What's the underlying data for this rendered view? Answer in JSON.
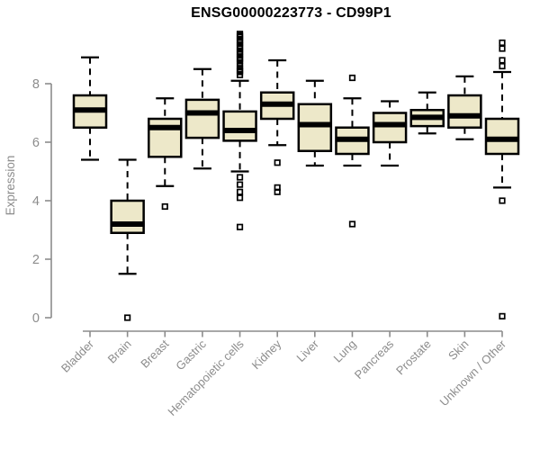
{
  "colors": {
    "background": "#FFFFFF",
    "title": "#000000",
    "axis": "#8C8C8C",
    "box_fill": "#EDE8C9",
    "box_stroke": "#000000"
  },
  "chart_data": {
    "type": "boxplot",
    "title": "ENSG00000223773 - CD99P1",
    "xlabel": "",
    "ylabel": "Expression",
    "yticks": [
      0,
      2,
      4,
      6,
      8
    ],
    "ylim": [
      0,
      9.9
    ],
    "grid": false,
    "legend": false,
    "categories": [
      "Bladder",
      "Brain",
      "Breast",
      "Gastric",
      "Hematopoietic cells",
      "Kidney",
      "Liver",
      "Lung",
      "Pancreas",
      "Prostate",
      "Skin",
      "Unknown / Other"
    ],
    "series": [
      {
        "category": "Bladder",
        "low": 5.4,
        "q1": 6.5,
        "median": 7.1,
        "q3": 7.6,
        "high": 8.9,
        "outliers": []
      },
      {
        "category": "Brain",
        "low": 1.5,
        "q1": 2.9,
        "median": 3.2,
        "q3": 4.0,
        "high": 5.4,
        "outliers": [
          0
        ]
      },
      {
        "category": "Breast",
        "low": 4.5,
        "q1": 5.5,
        "median": 6.5,
        "q3": 6.8,
        "high": 7.5,
        "outliers": [
          3.8
        ]
      },
      {
        "category": "Gastric",
        "low": 5.1,
        "q1": 6.15,
        "median": 7.0,
        "q3": 7.45,
        "high": 8.5,
        "outliers": []
      },
      {
        "category": "Hematopoietic cells",
        "low": 5.0,
        "q1": 6.05,
        "median": 6.4,
        "q3": 7.05,
        "high": 8.1,
        "outliers": [
          9.7,
          9.65,
          9.6,
          9.5,
          9.45,
          9.4,
          9.3,
          9.25,
          9.2,
          9.1,
          9.05,
          9.0,
          8.9,
          8.85,
          8.8,
          8.7,
          8.6,
          8.5,
          8.45,
          8.4,
          8.3,
          4.8,
          4.55,
          4.3,
          4.1,
          3.1
        ]
      },
      {
        "category": "Kidney",
        "low": 5.9,
        "q1": 6.8,
        "median": 7.3,
        "q3": 7.7,
        "high": 8.8,
        "outliers": [
          5.3,
          4.45,
          4.3
        ]
      },
      {
        "category": "Liver",
        "low": 5.2,
        "q1": 5.7,
        "median": 6.6,
        "q3": 7.3,
        "high": 8.1,
        "outliers": []
      },
      {
        "category": "Lung",
        "low": 5.2,
        "q1": 5.6,
        "median": 6.1,
        "q3": 6.5,
        "high": 7.5,
        "outliers": [
          8.2,
          3.2
        ]
      },
      {
        "category": "Pancreas",
        "low": 5.2,
        "q1": 6.0,
        "median": 6.6,
        "q3": 7.0,
        "high": 7.4,
        "outliers": []
      },
      {
        "category": "Prostate",
        "low": 6.3,
        "q1": 6.55,
        "median": 6.85,
        "q3": 7.1,
        "high": 7.7,
        "outliers": []
      },
      {
        "category": "Skin",
        "low": 6.1,
        "q1": 6.5,
        "median": 6.9,
        "q3": 7.6,
        "high": 8.25,
        "outliers": []
      },
      {
        "category": "Unknown / Other",
        "low": 4.45,
        "q1": 5.6,
        "median": 6.1,
        "q3": 6.8,
        "high": 8.4,
        "outliers": [
          9.4,
          9.2,
          8.8,
          8.6,
          4.0,
          0.05
        ]
      }
    ]
  }
}
